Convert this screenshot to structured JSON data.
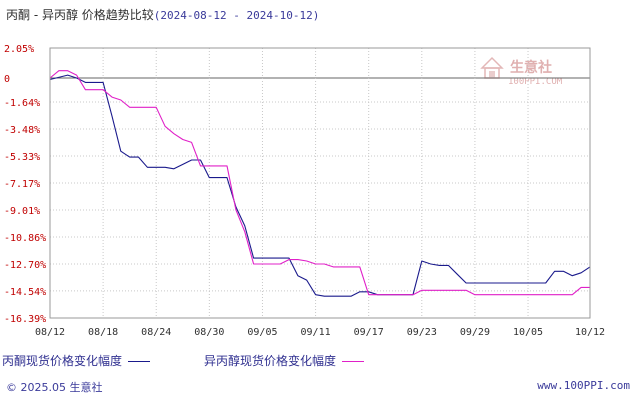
{
  "title": {
    "main": "丙酮 - 异丙醇 价格趋势比较",
    "range": "(2024-08-12 - 2024-10-12)"
  },
  "watermark": {
    "text": "生意社",
    "url": "100PPI.COM",
    "color": "#e8c8c8"
  },
  "colors": {
    "series_a": "#1a1a8c",
    "series_b": "#e020c8",
    "axis_tick_text": "#c00000",
    "grid": "#c8c8c8",
    "zero_line": "#666666"
  },
  "legend": {
    "series_a_label": "丙酮现货价格变化幅度",
    "series_b_label": "异丙醇现货价格变化幅度"
  },
  "footer": {
    "copyright": "© 2025.05 生意社",
    "site": "www.100PPI.com"
  },
  "chart_data": {
    "type": "line",
    "title": "丙酮 - 异丙醇 价格趋势比较",
    "ylim": [
      -16.39,
      2.05
    ],
    "yticks": [
      2.05,
      0,
      -1.64,
      -3.48,
      -5.33,
      -7.17,
      -9.01,
      -10.86,
      -12.7,
      -14.54,
      -16.39
    ],
    "ytick_labels": [
      "2.05%",
      "0",
      "-1.64%",
      "-3.48%",
      "-5.33%",
      "-7.17%",
      "-9.01%",
      "-10.86%",
      "-12.70%",
      "-14.54%",
      "-16.39%"
    ],
    "xlim": [
      "2024-08-12",
      "2024-10-12"
    ],
    "xticks": [
      "2024-08-12",
      "2024-08-18",
      "2024-08-24",
      "2024-08-30",
      "2024-09-05",
      "2024-09-11",
      "2024-09-17",
      "2024-09-23",
      "2024-09-29",
      "2024-10-05",
      "2024-10-12"
    ],
    "xtick_labels": [
      "08/12",
      "08/18",
      "08/24",
      "08/30",
      "09/05",
      "09/11",
      "09/17",
      "09/23",
      "09/29",
      "10/05",
      "10/12"
    ],
    "grid": true,
    "series": [
      {
        "name": "丙酮现货价格变化幅度",
        "points": [
          [
            "2024-08-12",
            -0.1
          ],
          [
            "2024-08-14",
            0.2
          ],
          [
            "2024-08-15",
            0.0
          ],
          [
            "2024-08-16",
            -0.3
          ],
          [
            "2024-08-17",
            -0.3
          ],
          [
            "2024-08-18",
            -0.3
          ],
          [
            "2024-08-19",
            -2.6
          ],
          [
            "2024-08-20",
            -5.0
          ],
          [
            "2024-08-21",
            -5.4
          ],
          [
            "2024-08-22",
            -5.4
          ],
          [
            "2024-08-23",
            -6.1
          ],
          [
            "2024-08-24",
            -6.1
          ],
          [
            "2024-08-25",
            -6.1
          ],
          [
            "2024-08-26",
            -6.2
          ],
          [
            "2024-08-27",
            -5.9
          ],
          [
            "2024-08-28",
            -5.6
          ],
          [
            "2024-08-29",
            -5.6
          ],
          [
            "2024-08-30",
            -6.8
          ],
          [
            "2024-08-31",
            -6.8
          ],
          [
            "2024-09-01",
            -6.8
          ],
          [
            "2024-09-02",
            -8.8
          ],
          [
            "2024-09-03",
            -10.1
          ],
          [
            "2024-09-04",
            -12.3
          ],
          [
            "2024-09-05",
            -12.3
          ],
          [
            "2024-09-06",
            -12.3
          ],
          [
            "2024-09-07",
            -12.3
          ],
          [
            "2024-09-08",
            -12.3
          ],
          [
            "2024-09-09",
            -13.5
          ],
          [
            "2024-09-10",
            -13.8
          ],
          [
            "2024-09-11",
            -14.8
          ],
          [
            "2024-09-12",
            -14.9
          ],
          [
            "2024-09-13",
            -14.9
          ],
          [
            "2024-09-14",
            -14.9
          ],
          [
            "2024-09-15",
            -14.9
          ],
          [
            "2024-09-16",
            -14.6
          ],
          [
            "2024-09-17",
            -14.6
          ],
          [
            "2024-09-18",
            -14.8
          ],
          [
            "2024-09-19",
            -14.8
          ],
          [
            "2024-09-20",
            -14.8
          ],
          [
            "2024-09-21",
            -14.8
          ],
          [
            "2024-09-22",
            -14.8
          ],
          [
            "2024-09-23",
            -12.5
          ],
          [
            "2024-09-24",
            -12.7
          ],
          [
            "2024-09-25",
            -12.8
          ],
          [
            "2024-09-26",
            -12.8
          ],
          [
            "2024-09-27",
            -13.4
          ],
          [
            "2024-09-28",
            -14.0
          ],
          [
            "2024-09-29",
            -14.0
          ],
          [
            "2024-09-30",
            -14.0
          ],
          [
            "2024-10-01",
            -14.0
          ],
          [
            "2024-10-02",
            -14.0
          ],
          [
            "2024-10-03",
            -14.0
          ],
          [
            "2024-10-04",
            -14.0
          ],
          [
            "2024-10-05",
            -14.0
          ],
          [
            "2024-10-06",
            -14.0
          ],
          [
            "2024-10-07",
            -14.0
          ],
          [
            "2024-10-08",
            -13.2
          ],
          [
            "2024-10-09",
            -13.2
          ],
          [
            "2024-10-10",
            -13.5
          ],
          [
            "2024-10-11",
            -13.3
          ],
          [
            "2024-10-12",
            -12.9
          ]
        ]
      },
      {
        "name": "异丙醇现货价格变化幅度",
        "points": [
          [
            "2024-08-12",
            0.0
          ],
          [
            "2024-08-13",
            0.5
          ],
          [
            "2024-08-14",
            0.5
          ],
          [
            "2024-08-15",
            0.2
          ],
          [
            "2024-08-16",
            -0.8
          ],
          [
            "2024-08-17",
            -0.8
          ],
          [
            "2024-08-18",
            -0.8
          ],
          [
            "2024-08-19",
            -1.3
          ],
          [
            "2024-08-20",
            -1.5
          ],
          [
            "2024-08-21",
            -2.0
          ],
          [
            "2024-08-22",
            -2.0
          ],
          [
            "2024-08-23",
            -2.0
          ],
          [
            "2024-08-24",
            -2.0
          ],
          [
            "2024-08-25",
            -3.3
          ],
          [
            "2024-08-26",
            -3.8
          ],
          [
            "2024-08-27",
            -4.2
          ],
          [
            "2024-08-28",
            -4.4
          ],
          [
            "2024-08-29",
            -6.0
          ],
          [
            "2024-08-30",
            -6.0
          ],
          [
            "2024-08-31",
            -6.0
          ],
          [
            "2024-09-01",
            -6.0
          ],
          [
            "2024-09-02",
            -9.0
          ],
          [
            "2024-09-03",
            -10.5
          ],
          [
            "2024-09-04",
            -12.7
          ],
          [
            "2024-09-05",
            -12.7
          ],
          [
            "2024-09-06",
            -12.7
          ],
          [
            "2024-09-07",
            -12.7
          ],
          [
            "2024-09-08",
            -12.4
          ],
          [
            "2024-09-09",
            -12.4
          ],
          [
            "2024-09-10",
            -12.5
          ],
          [
            "2024-09-11",
            -12.7
          ],
          [
            "2024-09-12",
            -12.7
          ],
          [
            "2024-09-13",
            -12.9
          ],
          [
            "2024-09-14",
            -12.9
          ],
          [
            "2024-09-15",
            -12.9
          ],
          [
            "2024-09-16",
            -12.9
          ],
          [
            "2024-09-17",
            -14.8
          ],
          [
            "2024-09-18",
            -14.8
          ],
          [
            "2024-09-19",
            -14.8
          ],
          [
            "2024-09-20",
            -14.8
          ],
          [
            "2024-09-21",
            -14.8
          ],
          [
            "2024-09-22",
            -14.8
          ],
          [
            "2024-09-23",
            -14.5
          ],
          [
            "2024-09-24",
            -14.5
          ],
          [
            "2024-09-25",
            -14.5
          ],
          [
            "2024-09-26",
            -14.5
          ],
          [
            "2024-09-27",
            -14.5
          ],
          [
            "2024-09-28",
            -14.5
          ],
          [
            "2024-09-29",
            -14.8
          ],
          [
            "2024-09-30",
            -14.8
          ],
          [
            "2024-10-01",
            -14.8
          ],
          [
            "2024-10-02",
            -14.8
          ],
          [
            "2024-10-03",
            -14.8
          ],
          [
            "2024-10-04",
            -14.8
          ],
          [
            "2024-10-05",
            -14.8
          ],
          [
            "2024-10-06",
            -14.8
          ],
          [
            "2024-10-07",
            -14.8
          ],
          [
            "2024-10-08",
            -14.8
          ],
          [
            "2024-10-09",
            -14.8
          ],
          [
            "2024-10-10",
            -14.8
          ],
          [
            "2024-10-11",
            -14.3
          ],
          [
            "2024-10-12",
            -14.3
          ]
        ]
      }
    ]
  }
}
